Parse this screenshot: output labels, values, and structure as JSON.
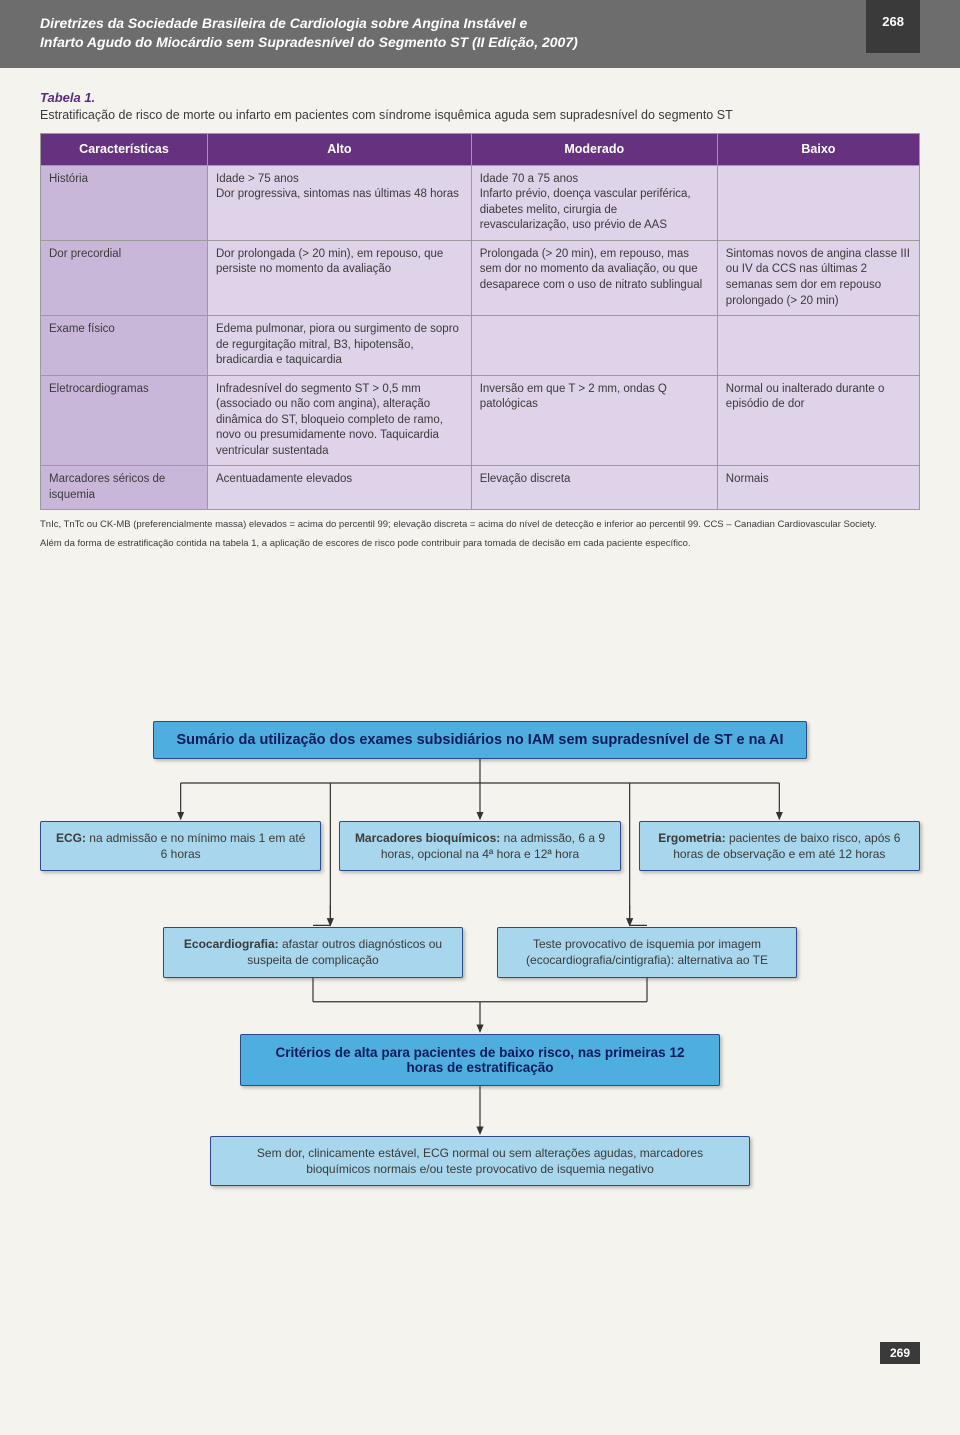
{
  "header": {
    "title_line1": "Diretrizes da Sociedade Brasileira de Cardiologia sobre Angina Instável e",
    "title_line2": "Infarto Agudo do Miocárdio sem Supradesnível do Segmento ST (II Edição, 2007)",
    "page_top": "268"
  },
  "table": {
    "label": "Tabela 1.",
    "caption": "Estratificação de risco de morte ou infarto em pacientes com síndrome isquêmica aguda sem supradesnível do segmento ST",
    "columns": [
      "Características",
      "Alto",
      "Moderado",
      "Baixo"
    ],
    "col_widths": [
      "19%",
      "30%",
      "28%",
      "23%"
    ],
    "rows": [
      {
        "label": "História",
        "alto": "Idade > 75 anos\nDor progressiva, sintomas nas últimas 48 horas",
        "moderado": "Idade 70 a 75 anos\nInfarto prévio, doença vascular periférica, diabetes melito, cirurgia de revascularização, uso prévio de AAS",
        "baixo": ""
      },
      {
        "label": "Dor precordial",
        "alto": "Dor prolongada (> 20 min), em repouso, que persiste no momento da avaliação",
        "moderado": "Prolongada (> 20 min), em repouso, mas sem dor no momento da avaliação, ou que desaparece com o uso de nitrato sublingual",
        "baixo": "Sintomas novos de angina classe III ou IV da CCS nas últimas 2 semanas sem dor em repouso prolongado (> 20 min)"
      },
      {
        "label": "Exame físico",
        "alto": "Edema pulmonar, piora ou surgimento de sopro de regurgitação mitral, B3, hipotensão, bradicardia e taquicardia",
        "moderado": "",
        "baixo": ""
      },
      {
        "label": "Eletrocardiogramas",
        "alto": "Infradesnível do segmento ST > 0,5 mm (associado ou não com angina), alteração dinâmica do ST, bloqueio completo de ramo, novo ou presumidamente novo. Taquicardia ventricular sustentada",
        "moderado": "Inversão em que T > 2 mm, ondas Q patológicas",
        "baixo": "Normal ou inalterado durante o episódio de dor"
      },
      {
        "label": "Marcadores séricos de isquemia",
        "alto": "Acentuadamente elevados",
        "moderado": "Elevação discreta",
        "baixo": "Normais"
      }
    ],
    "footnote1": "TnIc, TnTc ou CK-MB (preferencialmente massa) elevados = acima do percentil 99; elevação discreta = acima do nível de detecção e inferior ao percentil 99. CCS – Canadian Cardiovascular Society.",
    "footnote2": "Além da forma de estratificação contida na tabela 1, a aplicação de escores de risco pode contribuir para tomada de decisão em cada paciente específico."
  },
  "flow": {
    "title": "Sumário da utilização dos exames subsidiários no IAM sem supradesnível de ST e na AI",
    "row3": [
      {
        "bold": "ECG:",
        "text": " na admissão e no mínimo mais 1 em até 6 horas"
      },
      {
        "bold": "Marcadores bioquímicos:",
        "text": " na admissão, 6 a 9 horas, opcional na 4ª hora e 12ª hora"
      },
      {
        "bold": "Ergometria:",
        "text": " pacientes de baixo risco, após 6 horas de observação e em até 12 horas"
      }
    ],
    "row2": [
      {
        "bold": "Ecocardiografia:",
        "text": " afastar outros diagnósticos ou suspeita de complicação"
      },
      {
        "bold": "",
        "text": "Teste provocativo de isquemia por imagem (ecocardiografia/cintigrafia): alternativa ao TE"
      }
    ],
    "criteria_title": "Critérios de alta para pacientes de baixo risco, nas primeiras 12 horas de estratificação",
    "criteria_text": "Sem dor, clinicamente estável, ECG normal ou sem alterações agudas, marcadores bioquímicos normais e/ou teste provocativo de isquemia negativo"
  },
  "page_bottom": "269",
  "colors": {
    "header_bg": "#6d6d6d",
    "page_tab_bg": "#3a3a3a",
    "body_bg": "#f5f3ee",
    "table_header_bg": "#66327f",
    "table_label_bg": "#c9b7da",
    "table_cell_bg": "#ded3e9",
    "flow_title_bg": "#4faee0",
    "flow_box_bg": "#a8d6ec",
    "flow_border": "#2a4a8a",
    "table_label_color": "#5b2c84"
  }
}
